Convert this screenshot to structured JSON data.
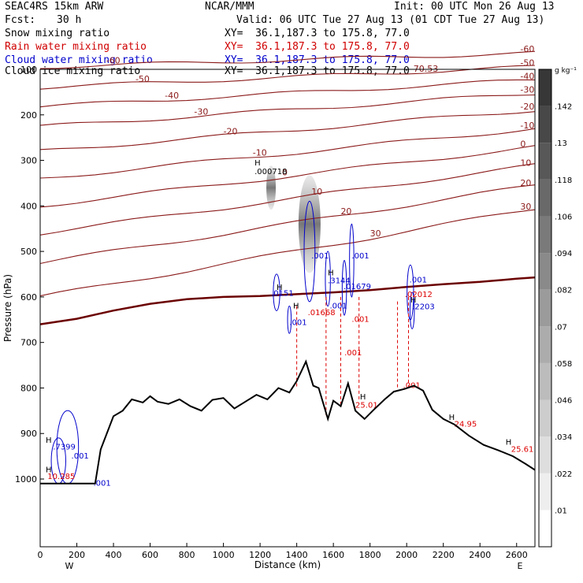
{
  "header": {
    "model": "SEAC4RS 15km ARW",
    "org": "NCAR/MMM",
    "init": "Init: 00 UTC Mon 26 Aug 13",
    "fcst_label": "Fcst:",
    "fcst_value": "30 h",
    "valid": "Valid: 06 UTC Tue 27 Aug 13 (01 CDT Tue 27 Aug 13)"
  },
  "legend": [
    {
      "label": "Snow mixing ratio",
      "xy": "XY=  36.1,187.3 to 175.8, 77.0",
      "color": "#000000"
    },
    {
      "label": "Rain water mixing ratio",
      "xy": "XY=  36.1,187.3 to 175.8, 77.0",
      "color": "#d00000"
    },
    {
      "label": "Cloud water mixing ratio",
      "xy": "XY=  36.1,187.3 to 175.8, 77.0",
      "color": "#0000cc"
    },
    {
      "label": "Cloud ice mixing ratio",
      "xy": "XY=  36.1,187.3 to 175.8, 77.0",
      "color": "#000000"
    }
  ],
  "colorbar": {
    "unit": "g kg⁻¹",
    "ticks": [
      ".01",
      ".022",
      ".034",
      ".046",
      ".058",
      ".07",
      ".082",
      ".094",
      ".106",
      ".118",
      ".13",
      ".142"
    ]
  },
  "chart_data": {
    "type": "contour",
    "xlabel": "Distance (km)",
    "ylabel": "Pressure (hPa)",
    "x_ticks": [
      "0",
      "200",
      "400",
      "600",
      "800",
      "1000",
      "1200",
      "1400",
      "1600",
      "1800",
      "2000",
      "2200",
      "2400",
      "2600"
    ],
    "y_ticks": [
      "100",
      "200",
      "300",
      "400",
      "500",
      "600",
      "700",
      "800",
      "900",
      "1000"
    ],
    "xlim": [
      0,
      2700
    ],
    "ylim": [
      1050,
      100
    ],
    "x_end_labels": {
      "left": "W",
      "right": "E"
    },
    "temperature_contours": {
      "color": "#8b1a1a",
      "levels": [
        {
          "value": -70,
          "label": "-70"
        },
        {
          "value": -60,
          "label": "-60",
          "p_at_start": 95
        },
        {
          "value": -50,
          "label": "-50",
          "p_at_start": 140
        },
        {
          "value": -40,
          "label": "-40",
          "p_at_start": 182
        },
        {
          "value": -30,
          "label": "-30",
          "p_at_start": 226
        },
        {
          "value": -20,
          "label": "-20",
          "p_at_start": 280
        },
        {
          "value": -10,
          "label": "-10",
          "p_at_start": 340
        },
        {
          "value": 0,
          "label": "0",
          "p_at_start": 400
        },
        {
          "value": 10,
          "label": "10",
          "p_at_start": 460
        },
        {
          "value": 20,
          "label": "20",
          "p_at_start": 525
        },
        {
          "value": 30,
          "label": "30",
          "p_at_start": 600
        }
      ],
      "freezing_line": [
        [
          0,
          660
        ],
        [
          200,
          648
        ],
        [
          400,
          630
        ],
        [
          600,
          615
        ],
        [
          800,
          605
        ],
        [
          1000,
          600
        ],
        [
          1200,
          598
        ],
        [
          1400,
          594
        ],
        [
          1600,
          590
        ],
        [
          1800,
          585
        ],
        [
          2000,
          578
        ],
        [
          2200,
          572
        ],
        [
          2400,
          567
        ],
        [
          2600,
          560
        ],
        [
          2700,
          557
        ]
      ],
      "max_label": {
        "text": "-70.53",
        "x": 2020,
        "p": 105
      }
    },
    "cloud_water": {
      "color": "#0000cc",
      "labels": [
        {
          "text": ".001",
          "x": 1480,
          "p": 515
        },
        {
          "text": ".3144",
          "x": 1570,
          "p": 570
        },
        {
          "text": ".001",
          "x": 1700,
          "p": 515
        },
        {
          "text": ".0151",
          "x": 1260,
          "p": 598
        },
        {
          "text": ".001",
          "x": 1360,
          "p": 662
        },
        {
          "text": ".01679",
          "x": 1655,
          "p": 583
        },
        {
          "text": ".001",
          "x": 1580,
          "p": 625
        },
        {
          "text": ".001",
          "x": 2015,
          "p": 568
        },
        {
          "text": ".2203",
          "x": 2030,
          "p": 627
        },
        {
          "text": ".001",
          "x": 170,
          "p": 955
        },
        {
          "text": ".7399",
          "x": 70,
          "p": 935
        },
        {
          "text": ".001",
          "x": 290,
          "p": 1015
        }
      ],
      "maxima": [
        {
          "text": "H",
          "x": 1570,
          "p": 553
        },
        {
          "text": "H",
          "x": 1290,
          "p": 585
        },
        {
          "text": "H",
          "x": 2020,
          "p": 612
        },
        {
          "text": "H",
          "x": 30,
          "p": 920
        }
      ]
    },
    "rain_water": {
      "color": "#dd0000",
      "labels": [
        {
          "text": ".01668",
          "x": 1460,
          "p": 640
        },
        {
          "text": ".02012",
          "x": 1990,
          "p": 600
        },
        {
          "text": ".001",
          "x": 1660,
          "p": 728
        },
        {
          "text": ".001",
          "x": 1700,
          "p": 655
        },
        {
          "text": ".001",
          "x": 1980,
          "p": 800
        },
        {
          "text": "25.01",
          "x": 1720,
          "p": 843
        },
        {
          "text": "24.95",
          "x": 2260,
          "p": 885
        },
        {
          "text": "25.61",
          "x": 2570,
          "p": 940
        },
        {
          "text": "10.285",
          "x": 40,
          "p": 1000
        }
      ],
      "maxima": [
        {
          "text": "H",
          "x": 1380,
          "p": 625
        },
        {
          "text": "H",
          "x": 1745,
          "p": 825
        },
        {
          "text": "H",
          "x": 2230,
          "p": 870
        },
        {
          "text": "H",
          "x": 2540,
          "p": 925
        },
        {
          "text": "H",
          "x": 30,
          "p": 985
        }
      ]
    },
    "snow_max": {
      "text": ".000718",
      "x": 1170,
      "p": 330,
      "h": "H"
    },
    "terrain": [
      [
        0,
        1010
      ],
      [
        250,
        1010
      ],
      [
        300,
        1010
      ],
      [
        330,
        935
      ],
      [
        400,
        862
      ],
      [
        450,
        850
      ],
      [
        500,
        825
      ],
      [
        560,
        832
      ],
      [
        600,
        818
      ],
      [
        640,
        830
      ],
      [
        700,
        835
      ],
      [
        760,
        825
      ],
      [
        820,
        840
      ],
      [
        880,
        850
      ],
      [
        940,
        826
      ],
      [
        1000,
        822
      ],
      [
        1060,
        845
      ],
      [
        1120,
        830
      ],
      [
        1180,
        815
      ],
      [
        1240,
        825
      ],
      [
        1300,
        800
      ],
      [
        1360,
        810
      ],
      [
        1400,
        785
      ],
      [
        1450,
        742
      ],
      [
        1490,
        795
      ],
      [
        1520,
        800
      ],
      [
        1570,
        868
      ],
      [
        1600,
        828
      ],
      [
        1640,
        840
      ],
      [
        1680,
        790
      ],
      [
        1720,
        850
      ],
      [
        1770,
        868
      ],
      [
        1820,
        848
      ],
      [
        1880,
        825
      ],
      [
        1930,
        808
      ],
      [
        1990,
        802
      ],
      [
        2040,
        795
      ],
      [
        2090,
        806
      ],
      [
        2140,
        848
      ],
      [
        2200,
        868
      ],
      [
        2260,
        880
      ],
      [
        2340,
        905
      ],
      [
        2420,
        925
      ],
      [
        2500,
        937
      ],
      [
        2580,
        950
      ],
      [
        2650,
        967
      ],
      [
        2700,
        980
      ]
    ]
  }
}
